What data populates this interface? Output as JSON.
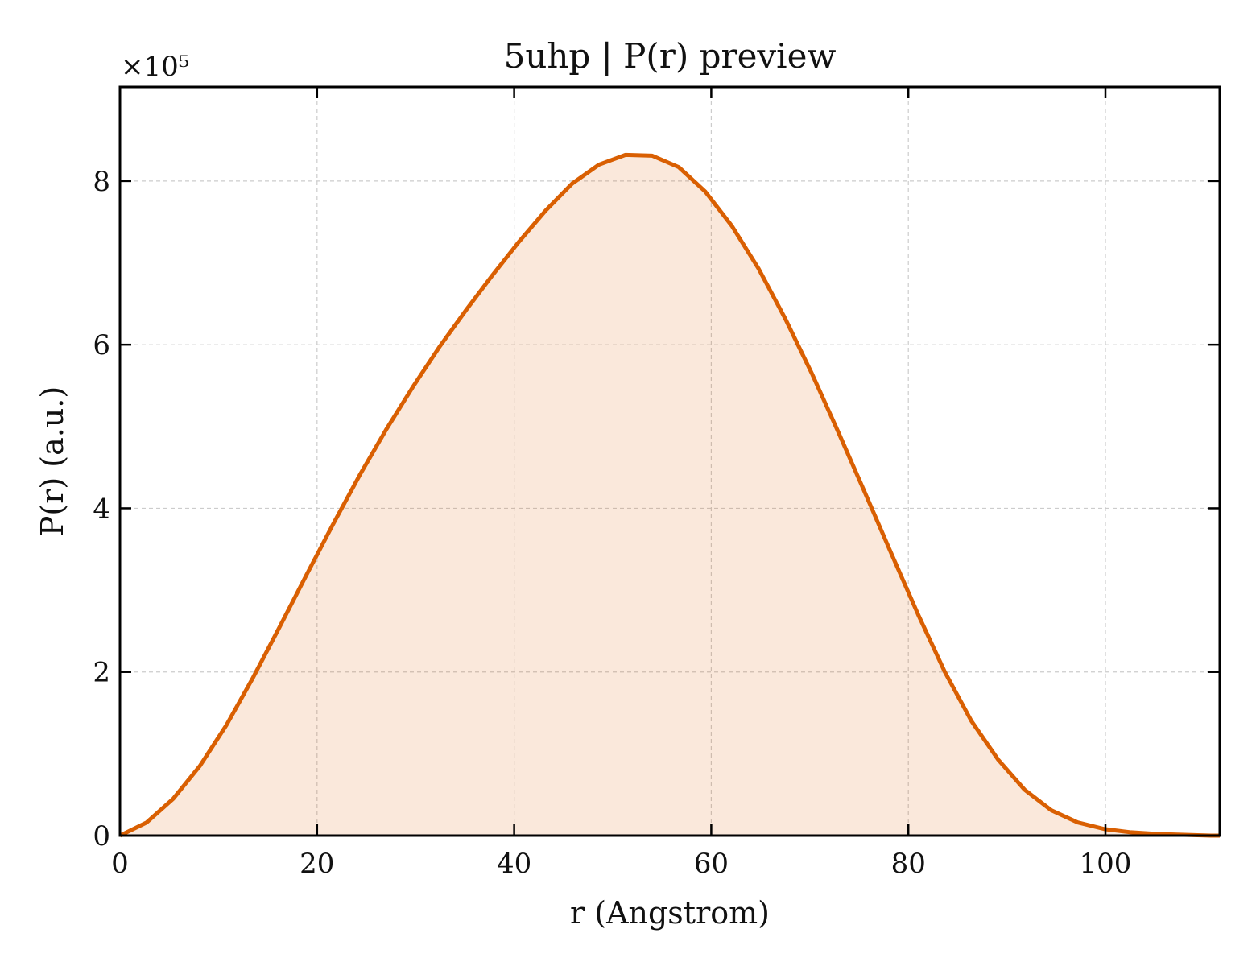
{
  "chart_data": {
    "type": "area",
    "title": "5uhp | P(r) preview",
    "xlabel": "r (Angstrom)",
    "ylabel": "P(r) (a.u.)",
    "y_scale_label": "×10⁵",
    "xlim": [
      0,
      111.6
    ],
    "ylim": [
      0,
      9.15
    ],
    "y_unit_multiplier": 100000,
    "x_ticks": [
      0,
      20,
      40,
      60,
      80,
      100
    ],
    "y_ticks": [
      0,
      2,
      4,
      6,
      8
    ],
    "grid": true,
    "legend": "none",
    "colors": {
      "line": "#d95f02",
      "fill": "#d95f02"
    },
    "series": [
      {
        "x": [
          0,
          2.7,
          5.4,
          8.1,
          10.8,
          13.5,
          16.2,
          18.9,
          21.6,
          24.3,
          27.0,
          29.7,
          32.4,
          35.1,
          37.8,
          40.5,
          43.2,
          45.9,
          48.6,
          51.3,
          54.0,
          56.7,
          59.4,
          62.1,
          64.8,
          67.5,
          70.2,
          72.9,
          75.6,
          78.3,
          81.0,
          83.7,
          86.4,
          89.1,
          91.8,
          94.5,
          97.2,
          99.9,
          102.6,
          105.3,
          108.0,
          110.7,
          111.6
        ],
        "values": [
          0.0,
          0.16,
          0.45,
          0.85,
          1.35,
          1.93,
          2.55,
          3.18,
          3.8,
          4.4,
          4.96,
          5.48,
          5.97,
          6.42,
          6.85,
          7.26,
          7.64,
          7.97,
          8.2,
          8.32,
          8.31,
          8.17,
          7.87,
          7.45,
          6.93,
          6.32,
          5.65,
          4.93,
          4.19,
          3.44,
          2.7,
          2.0,
          1.4,
          0.93,
          0.56,
          0.31,
          0.16,
          0.08,
          0.04,
          0.02,
          0.01,
          0.0,
          0.0
        ]
      }
    ]
  }
}
